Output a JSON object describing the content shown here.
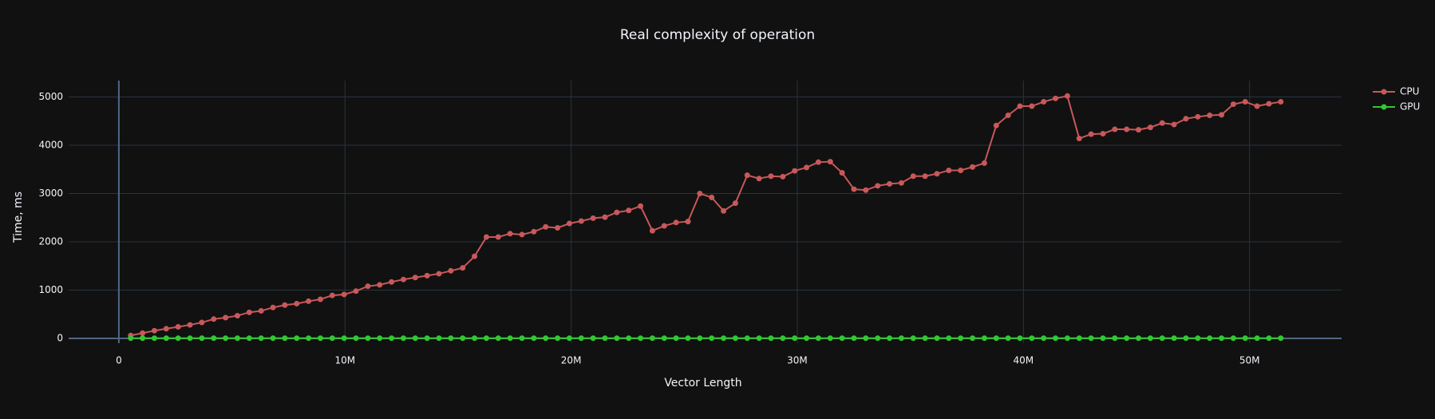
{
  "chart_data": {
    "type": "line",
    "title": "Real complexity of operation",
    "xlabel": "Vector Length",
    "ylabel": "Time, ms",
    "x": [
      524288,
      1048576,
      1572864,
      2097152,
      2621440,
      3145728,
      3670016,
      4194304,
      4718592,
      5242880,
      5767168,
      6291456,
      6815744,
      7340032,
      7864320,
      8388608,
      8912896,
      9437184,
      9961472,
      10485760,
      11010048,
      11534336,
      12058624,
      12582912,
      13107200,
      13631488,
      14155776,
      14680064,
      15204352,
      15728640,
      16252928,
      16777216,
      17301504,
      17825792,
      18350080,
      18874368,
      19398656,
      19922944,
      20447232,
      20971520,
      21495808,
      22020096,
      22544384,
      23068672,
      23592960,
      24117248,
      24641536,
      25165824,
      25690112,
      26214400,
      26738688,
      27262976,
      27787264,
      28311552,
      28835840,
      29360128,
      29884416,
      30408704,
      30932992,
      31457280,
      31981568,
      32505856,
      33030144,
      33554432,
      34078720,
      34603008,
      35127296,
      35651584,
      36175872,
      36700160,
      37224448,
      37748736,
      38273024,
      38797312,
      39321600,
      39845888,
      40370176,
      40894464,
      41418752,
      41943040,
      42467328,
      42991616,
      43515904,
      44040192,
      44564480,
      45088768,
      45613056,
      46137344,
      46661632,
      47185920,
      47710208,
      48234496,
      48758784,
      49283072,
      49807360,
      50331648,
      50855936,
      51380224
    ],
    "series": [
      {
        "name": "CPU",
        "color": "#c8585a",
        "values": [
          60,
          110,
          160,
          200,
          240,
          280,
          330,
          400,
          430,
          470,
          540,
          570,
          640,
          690,
          720,
          770,
          810,
          890,
          910,
          980,
          1080,
          1110,
          1170,
          1220,
          1260,
          1300,
          1340,
          1400,
          1460,
          1700,
          2100,
          2100,
          2170,
          2150,
          2210,
          2310,
          2290,
          2380,
          2430,
          2490,
          2510,
          2610,
          2650,
          2740,
          2230,
          2330,
          2400,
          2420,
          3000,
          2920,
          2640,
          2800,
          3380,
          3310,
          3360,
          3350,
          3470,
          3540,
          3650,
          3660,
          3430,
          3090,
          3070,
          3160,
          3200,
          3220,
          3360,
          3360,
          3410,
          3480,
          3480,
          3550,
          3630,
          4410,
          4620,
          4810,
          4810,
          4900,
          4970,
          5020,
          4140,
          4230,
          4240,
          4330,
          4330,
          4320,
          4370,
          4460,
          4430,
          4550,
          4590,
          4620,
          4630,
          4850,
          4900,
          4810,
          4860,
          4900
        ]
      },
      {
        "name": "GPU",
        "color": "#32c832",
        "values": [
          5,
          5,
          5,
          5,
          5,
          5,
          5,
          5,
          5,
          5,
          5,
          5,
          5,
          5,
          5,
          5,
          5,
          5,
          5,
          5,
          5,
          5,
          5,
          5,
          5,
          5,
          5,
          5,
          5,
          5,
          5,
          5,
          5,
          5,
          5,
          5,
          5,
          5,
          5,
          5,
          5,
          5,
          5,
          5,
          5,
          5,
          5,
          5,
          5,
          5,
          5,
          5,
          5,
          5,
          5,
          5,
          5,
          5,
          5,
          5,
          5,
          5,
          5,
          5,
          5,
          5,
          5,
          5,
          5,
          5,
          5,
          5,
          5,
          5,
          5,
          5,
          5,
          5,
          5,
          5,
          5,
          5,
          5,
          5,
          5,
          5,
          5,
          5,
          5,
          5,
          5,
          5,
          5,
          5,
          5,
          5,
          5,
          5
        ]
      }
    ],
    "xlim": [
      -2220000,
      54070000
    ],
    "ylim": [
      -99,
      5339
    ],
    "xticks": [
      0,
      {
        "value": 10000000,
        "label": "10M"
      },
      {
        "value": 20000000,
        "label": "20M"
      },
      {
        "value": 30000000,
        "label": "30M"
      },
      {
        "value": 40000000,
        "label": "40M"
      },
      {
        "value": 50000000,
        "label": "50M"
      }
    ],
    "yticks": [
      0,
      1000,
      2000,
      3000,
      4000,
      5000
    ],
    "grid": true
  }
}
